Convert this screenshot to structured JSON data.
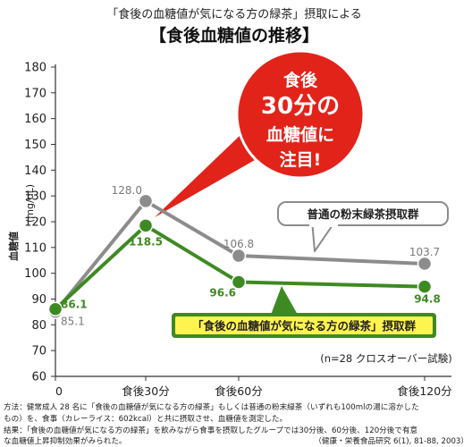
{
  "header": {
    "subtitle": "「食後の血糖値が気になる方の緑茶」摂取による",
    "title": "【食後血糖値の推移】"
  },
  "chart_data": {
    "type": "line",
    "ylabel": "血糖値",
    "yunit": "(mg/dL)",
    "ylim": [
      60,
      180
    ],
    "yticks": [
      "60",
      "70",
      "80",
      "90",
      "100",
      "110",
      "120",
      "130",
      "140",
      "150",
      "160",
      "170",
      "180"
    ],
    "x": [
      0,
      30,
      60,
      120
    ],
    "xtick_labels": [
      "0",
      "食後30分",
      "食後60分",
      "食後120分"
    ],
    "grid": false,
    "series": [
      {
        "name": "普通の粉末緑茶摂取群",
        "color": "#8c8c8c",
        "values": [
          85.1,
          128.0,
          106.8,
          103.7
        ],
        "labels": [
          "85.1",
          "128.0",
          "106.8",
          "103.7"
        ]
      },
      {
        "name": "「食後の血糖値が気になる方の緑茶」摂取群",
        "color": "#3e8a22",
        "values": [
          86.1,
          118.5,
          96.6,
          94.8
        ],
        "labels": [
          "86.1",
          "118.5",
          "96.6",
          "94.8"
        ]
      }
    ],
    "callout": {
      "lines": [
        "食後",
        "30分の",
        "血糖値に",
        "注目!"
      ],
      "color": "#e2231a"
    },
    "annotation": "(n=28 クロスオーバー試験)"
  },
  "footnotes": {
    "lines": [
      "方法：健常成人 28 名に「食後の血糖値が気になる方の緑茶」もしくは普通の粉末緑茶（いずれも100mlの湯に溶かした",
      "もの）を、食事（カレーライス：602kcal）と共に摂取させ、血糖値を測定した。",
      "結果：「食後の血糖値が気になる方の緑茶」を飲みながら食事を摂取したグループでは30分後、60分後、120分後で有意",
      "な血糖値上昇抑制効果がみられた。"
    ],
    "source": "（健康・栄養食品研究 6(1), 81-88, 2003）"
  }
}
